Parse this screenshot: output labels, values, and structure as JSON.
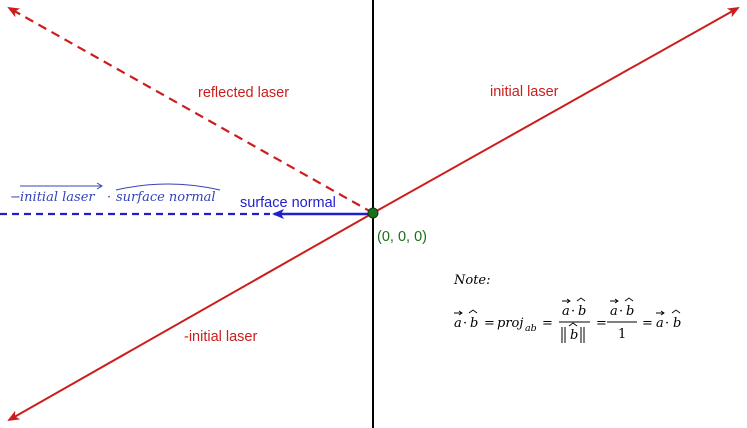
{
  "labels": {
    "reflected": "reflected laser",
    "initial": "initial laser",
    "neg_initial": "-initial laser",
    "surface_normal": "surface normal",
    "origin": "(0, 0, 0)"
  },
  "projection_expr": {
    "minus": "−",
    "vector_name": "initial laser",
    "dot": "·",
    "hat_name": "surface normal"
  },
  "note": {
    "title": "Note:",
    "a": "a",
    "b": "b",
    "dot": "·",
    "eq": "=",
    "proj": "proj",
    "proj_sub": "ab",
    "one": "1"
  },
  "colors": {
    "laser": "#cc1d1d",
    "normal": "#1f1fcc",
    "origin": "#1b6e1b",
    "axis": "#000000"
  }
}
